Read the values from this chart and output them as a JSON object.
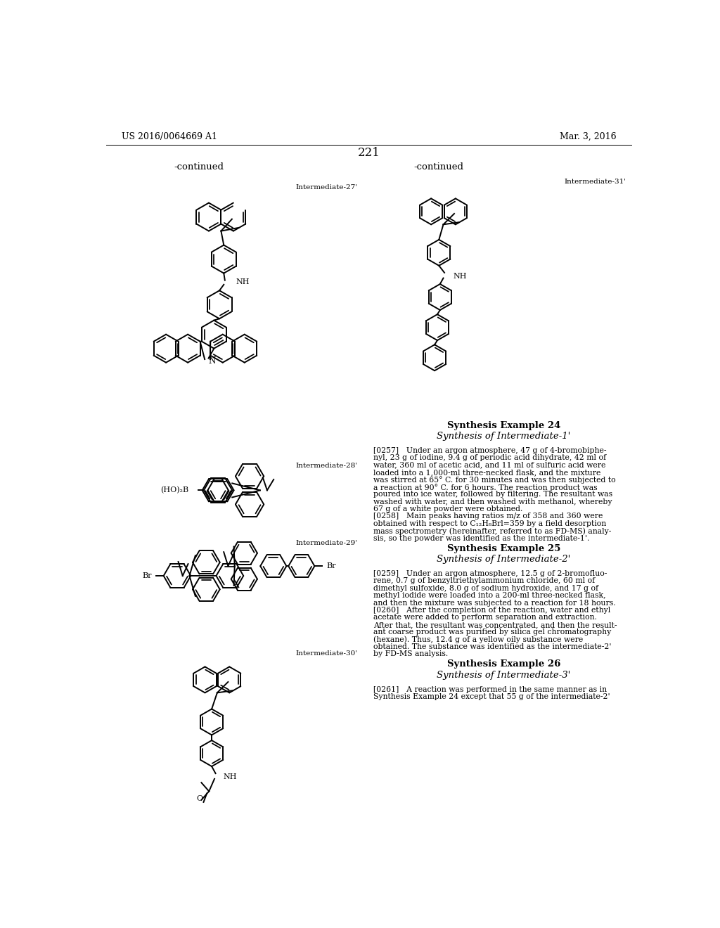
{
  "title_left": "US 2016/0064669 A1",
  "title_right": "Mar. 3, 2016",
  "page_number": "221",
  "continued_left": "-continued",
  "continued_right": "-continued",
  "bg_color": "#ffffff",
  "text_color": "#000000",
  "body_texts": [
    "[0257] Under an argon atmosphere, 47 g of 4-bromobiphe-\nnyl, 23 g of iodine, 9.4 g of periodic acid dihydrate, 42 ml of\nwater, 360 ml of acetic acid, and 11 ml of sulfuric acid were\nloaded into a 1,000-ml three-necked flask, and the mixture\nwas stirred at 65° C. for 30 minutes and was then subjected to\na reaction at 90° C. for 6 hours. The reaction product was\npoured into ice water, followed by filtering. The resultant was\nwashed with water, and then washed with methanol, whereby\n67 g of a white powder were obtained.",
    "[0258] Main peaks having ratios m/z of 358 and 360 were\nobtained with respect to C₁₂H₈Brl=359 by a field desorption\nmass spectrometry (hereinafter, referred to as FD-MS) analy-\nsis, so the powder was identified as the intermediate-1'.",
    "[0259] Under an argon atmosphere, 12.5 g of 2-bromofluo-\nrene, 0.7 g of benzyltriethylammonium chloride, 60 ml of\ndimethyl sulfoxide, 8.0 g of sodium hydroxide, and 17 g of\nmethyl iodide were loaded into a 200-ml three-necked flask,\nand then the mixture was subjected to a reaction for 18 hours.",
    "[0260] After the completion of the reaction, water and ethyl\nacetate were added to perform separation and extraction.\nAfter that, the resultant was concentrated, and then the result-\nant coarse product was purified by silica gel chromatography\n(hexane). Thus, 12.4 g of a yellow oily substance were\nobtained. The substance was identified as the intermediate-2'\nby FD-MS analysis.",
    "[0261] A reaction was performed in the same manner as in\nSynthesis Example 24 except that 55 g of the intermediate-2'"
  ]
}
